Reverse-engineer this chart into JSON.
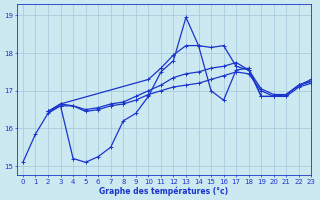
{
  "title": "Graphe des températures (°c)",
  "bg_color": "#cce8f0",
  "grid_color": "#aaccdd",
  "line_color": "#1a35cc",
  "xlim": [
    -0.5,
    23
  ],
  "ylim": [
    14.75,
    19.3
  ],
  "yticks": [
    15,
    16,
    17,
    18,
    19
  ],
  "xticks": [
    0,
    1,
    2,
    3,
    4,
    5,
    6,
    7,
    8,
    9,
    10,
    11,
    12,
    13,
    14,
    15,
    16,
    17,
    18,
    19,
    20,
    21,
    22,
    23
  ],
  "series1_x": [
    0,
    1,
    2,
    3,
    4,
    5,
    6,
    7,
    8,
    9,
    10,
    11,
    12,
    13,
    14,
    15,
    16,
    17,
    18,
    19,
    20,
    21,
    22,
    23
  ],
  "series1_y": [
    15.1,
    15.85,
    16.4,
    16.6,
    15.2,
    15.1,
    15.25,
    15.5,
    16.2,
    16.4,
    16.85,
    17.5,
    17.8,
    18.95,
    18.2,
    17.0,
    16.75,
    17.55,
    17.6,
    16.85,
    16.85,
    16.9,
    17.15,
    17.25
  ],
  "series2_x": [
    2,
    3,
    4,
    5,
    6,
    7,
    8,
    9,
    10,
    11,
    12,
    13,
    14,
    15,
    16,
    17,
    18,
    19,
    20,
    21,
    22,
    23
  ],
  "series2_y": [
    16.45,
    16.6,
    16.6,
    16.45,
    16.5,
    16.6,
    16.65,
    16.75,
    16.9,
    17.0,
    17.1,
    17.15,
    17.2,
    17.3,
    17.4,
    17.5,
    17.45,
    17.0,
    16.85,
    16.85,
    17.1,
    17.2
  ],
  "series3_x": [
    2,
    3,
    4,
    5,
    6,
    7,
    8,
    9,
    10,
    11,
    12,
    13,
    14,
    15,
    16,
    17,
    18,
    19,
    20,
    21,
    22,
    23
  ],
  "series3_y": [
    16.45,
    16.65,
    16.6,
    16.5,
    16.55,
    16.65,
    16.7,
    16.85,
    17.0,
    17.15,
    17.35,
    17.45,
    17.5,
    17.6,
    17.65,
    17.75,
    17.55,
    17.05,
    16.9,
    16.9,
    17.15,
    17.3
  ],
  "series4_x": [
    2,
    3,
    10,
    11,
    12,
    13,
    14,
    15,
    16,
    17,
    18,
    19,
    20,
    21,
    22,
    23
  ],
  "series4_y": [
    16.45,
    16.65,
    17.3,
    17.6,
    17.95,
    18.2,
    18.2,
    18.15,
    18.2,
    17.65,
    17.55,
    16.85,
    16.85,
    16.9,
    17.15,
    17.25
  ]
}
